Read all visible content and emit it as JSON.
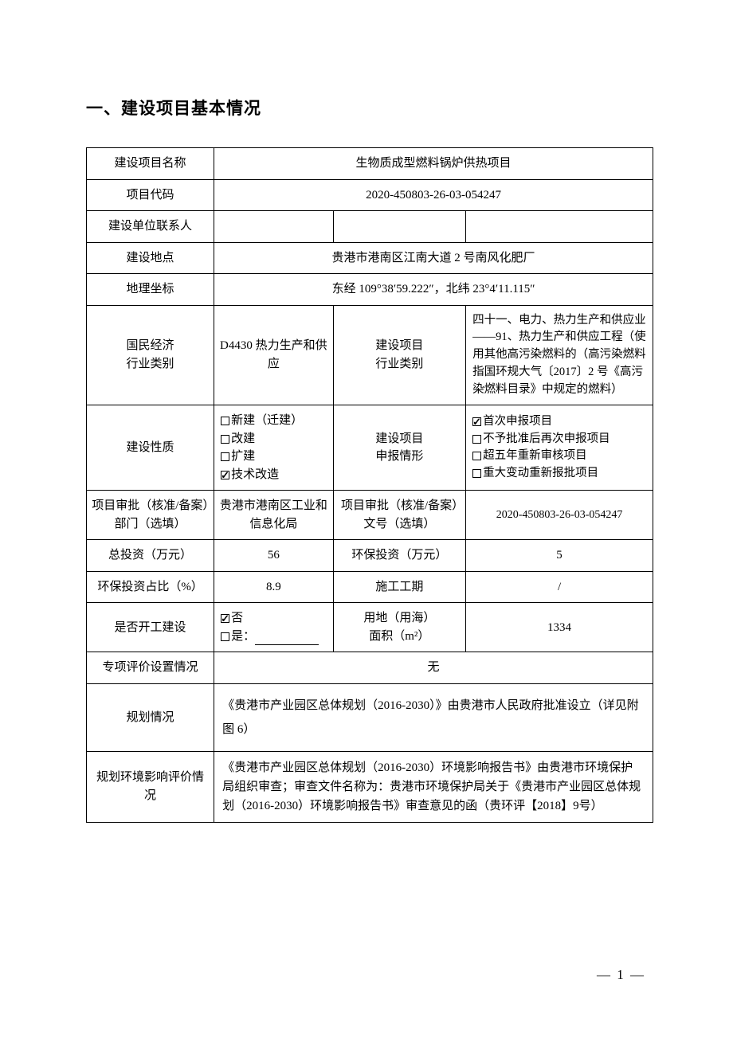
{
  "page": {
    "section_title": "一、建设项目基本情况",
    "page_number": "— 1 —"
  },
  "rows": {
    "r1": {
      "label": "建设项目名称",
      "value": "生物质成型燃料锅炉供热项目"
    },
    "r2": {
      "label": "项目代码",
      "value": "2020-450803-26-03-054247"
    },
    "r3": {
      "label": "建设单位联系人",
      "c2": "",
      "c3": "",
      "c4": ""
    },
    "r4": {
      "label": "建设地点",
      "value": "贵港市港南区江南大道 2 号南风化肥厂"
    },
    "r5": {
      "label": "地理坐标",
      "value": "东经 109°38′59.222″，北纬 23°4′11.115″"
    },
    "r6": {
      "label": "国民经济\n行业类别",
      "c2": "D4430 热力生产和供应",
      "c3": "建设项目\n行业类别",
      "c4": "四十一、电力、热力生产和供应业——91、热力生产和供应工程（使用其他高污染燃料的（高污染燃料指国环规大气〔2017〕2 号《高污染燃料目录》中规定的燃料）"
    },
    "r7": {
      "label": "建设性质",
      "c3": "建设项目\n申报情形",
      "opts2": [
        {
          "checked": false,
          "text": "新建（迁建）"
        },
        {
          "checked": false,
          "text": "改建"
        },
        {
          "checked": false,
          "text": "扩建"
        },
        {
          "checked": true,
          "text": "技术改造"
        }
      ],
      "opts4": [
        {
          "checked": true,
          "text": "首次申报项目"
        },
        {
          "checked": false,
          "text": "不予批准后再次申报项目"
        },
        {
          "checked": false,
          "text": "超五年重新审核项目"
        },
        {
          "checked": false,
          "text": "重大变动重新报批项目"
        }
      ]
    },
    "r8": {
      "label": "项目审批（核准/备案）部门（选填）",
      "c2": "贵港市港南区工业和信息化局",
      "c3": "项目审批（核准/备案）文号（选填）",
      "c4": "2020-450803-26-03-054247"
    },
    "r9": {
      "label": "总投资（万元）",
      "c2": "56",
      "c3": "环保投资（万元）",
      "c4": "5"
    },
    "r10": {
      "label": "环保投资占比（%）",
      "c2": "8.9",
      "c3": "施工工期",
      "c4": "/"
    },
    "r11": {
      "label": "是否开工建设",
      "opt_no": "否",
      "opt_yes": "是：",
      "c3": "用地（用海）\n面积（m²）",
      "c4": "1334"
    },
    "r12": {
      "label": "专项评价设置情况",
      "value": "无"
    },
    "r13": {
      "label": "规划情况",
      "value": "《贵港市产业园区总体规划（2016-2030）》由贵港市人民政府批准设立（详见附图 6）"
    },
    "r14": {
      "label": "规划环境影响评价情况",
      "value": "《贵港市产业园区总体规划（2016-2030）环境影响报告书》由贵港市环境保护局组织审查；审查文件名称为：贵港市环境保护局关于《贵港市产业园区总体规划（2016-2030）环境影响报告书》审查意见的函（贵环评【2018】9号）"
    }
  }
}
